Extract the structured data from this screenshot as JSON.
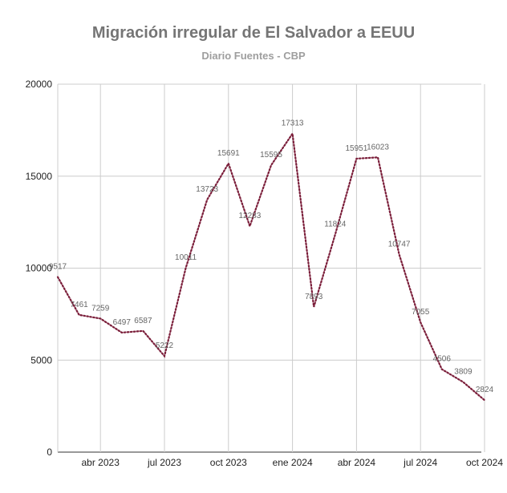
{
  "chart_data": {
    "type": "line",
    "title": "Migración irregular de El Salvador a EEUU",
    "subtitle": "Diario Fuentes - CBP",
    "xlabel": "",
    "ylabel": "",
    "ylim": [
      0,
      20000
    ],
    "yticks": [
      "0",
      "5000",
      "10000",
      "15000",
      "20000"
    ],
    "xticks": [
      "abr 2023",
      "jul 2023",
      "oct 2023",
      "ene 2024",
      "abr 2024",
      "jul 2024",
      "oct 2024"
    ],
    "line_color": "#7b1e3a",
    "line_style": "dotted",
    "series": [
      {
        "name": "Migración irregular",
        "points": [
          {
            "label": "9517",
            "month": 0,
            "value": 9517
          },
          {
            "label": "7461",
            "month": 1,
            "value": 7461
          },
          {
            "label": "7259",
            "month": 2,
            "value": 7259
          },
          {
            "label": "6497",
            "month": 3,
            "value": 6497
          },
          {
            "label": "6587",
            "month": 4,
            "value": 6587
          },
          {
            "label": "5222",
            "month": 5,
            "value": 5222
          },
          {
            "label": "10011",
            "month": 6,
            "value": 10011
          },
          {
            "label": "13723",
            "month": 7,
            "value": 13723
          },
          {
            "label": "15691",
            "month": 8,
            "value": 15691
          },
          {
            "label": "12283",
            "month": 9,
            "value": 12283
          },
          {
            "label": "15595",
            "month": 10,
            "value": 15595
          },
          {
            "label": "17313",
            "month": 11,
            "value": 17313
          },
          {
            "label": "7893",
            "month": 12,
            "value": 7893
          },
          {
            "label": "11824",
            "month": 13,
            "value": 11824
          },
          {
            "label": "15951",
            "month": 14,
            "value": 15951
          },
          {
            "label": "16023",
            "month": 15,
            "value": 16023
          },
          {
            "label": "10747",
            "month": 16,
            "value": 10747
          },
          {
            "label": "7055",
            "month": 17,
            "value": 7055
          },
          {
            "label": "4506",
            "month": 18,
            "value": 4506
          },
          {
            "label": "3809",
            "month": 19,
            "value": 3809
          },
          {
            "label": "2824",
            "month": 20,
            "value": 2824
          }
        ]
      }
    ]
  }
}
